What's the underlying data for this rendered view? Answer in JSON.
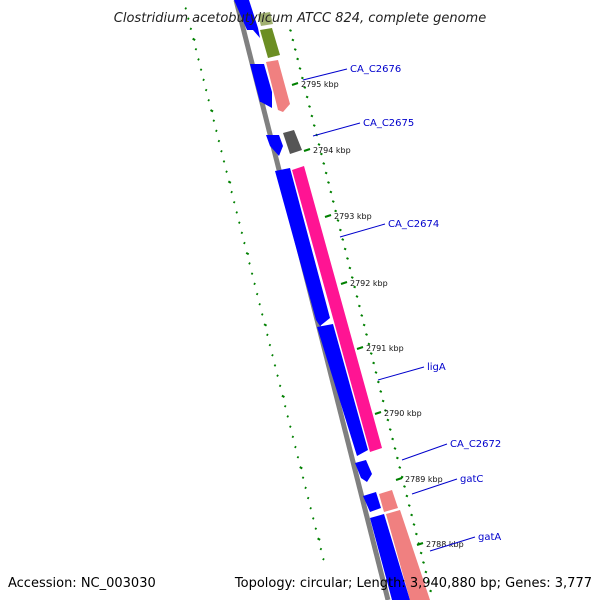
{
  "title": "Clostridium acetobutylicum ATCC 824, complete genome",
  "footer": {
    "accession": "Accession: NC_003030",
    "topology": "Topology: circular; Length: 3,940,880 bp; Genes: 3,777"
  },
  "colors": {
    "background": "#ffffff",
    "backbone": "#808080",
    "forward_cds": "#0000ff",
    "reverse_pink": "#ff1493",
    "reverse_salmon": "#f08080",
    "reverse_olive": "#6b8e23",
    "reverse_gray": "#555555",
    "gc_dashes": "#008000",
    "label_text": "#0000cc",
    "tick_text": "#111111"
  },
  "ticks": [
    {
      "label": "2795 kbp",
      "kbp": 2795
    },
    {
      "label": "2794 kbp",
      "kbp": 2794
    },
    {
      "label": "2793 kbp",
      "kbp": 2793
    },
    {
      "label": "2792 kbp",
      "kbp": 2792
    },
    {
      "label": "2791 kbp",
      "kbp": 2791
    },
    {
      "label": "2790 kbp",
      "kbp": 2790
    },
    {
      "label": "2789 kbp",
      "kbp": 2789
    },
    {
      "label": "2788 kbp",
      "kbp": 2788
    }
  ],
  "gene_labels": [
    {
      "text": "CA_C2676"
    },
    {
      "text": "CA_C2675"
    },
    {
      "text": "CA_C2674"
    },
    {
      "text": "ligA"
    },
    {
      "text": "CA_C2672"
    },
    {
      "text": "gatC"
    },
    {
      "text": "gatA"
    }
  ]
}
